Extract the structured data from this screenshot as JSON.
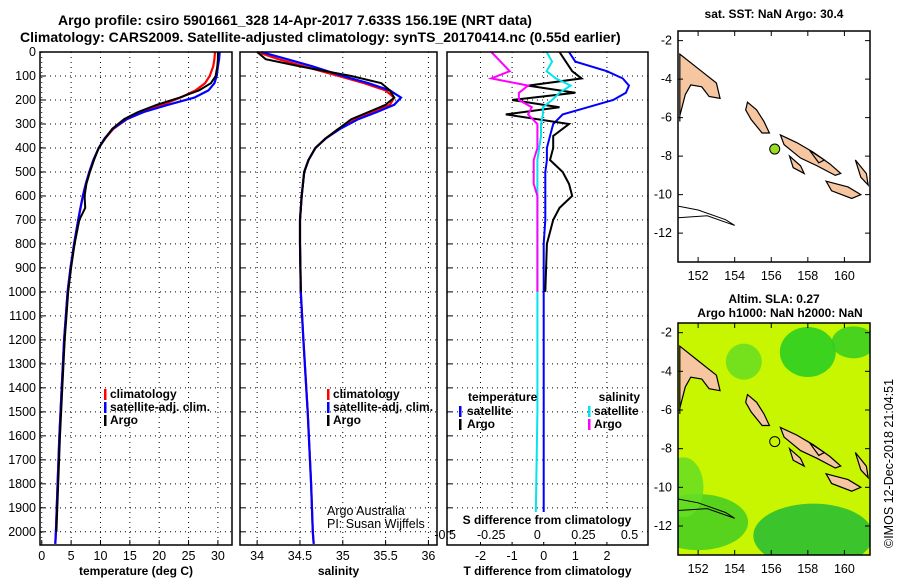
{
  "title": {
    "line1": "Argo profile: csiro 5901661_328 14-Apr-2017 7.633S 156.19E (NRT data)",
    "line2": "Climatology: CARS2009. Satellite-adjusted climatology: synTS_20170414.nc (0.55d earlier)"
  },
  "colors": {
    "climatology": "#ff0000",
    "satellite": "#0000ff",
    "argo": "#000000",
    "sal_satellite": "#00e5ee",
    "sal_argo": "#ff00ff",
    "land": "#f5c6a0"
  },
  "depth_ticks": [
    "0",
    "100",
    "200",
    "300",
    "400",
    "500",
    "600",
    "700",
    "800",
    "900",
    "1000",
    "1100",
    "1200",
    "1300",
    "1400",
    "1500",
    "1600",
    "1700",
    "1800",
    "1900",
    "2000"
  ],
  "chart_data": [
    {
      "type": "line",
      "name": "temperature",
      "xlabel": "temperature (deg C)",
      "ylabel": "depth",
      "xlim": [
        -0.3,
        32.4
      ],
      "ylim": [
        2055,
        0
      ],
      "xticks": [
        "0",
        "5",
        "10",
        "15",
        "20",
        "25",
        "30"
      ],
      "legend": {
        "placement": "lower-center",
        "entries": [
          "climatology",
          "satellite-adj. clim.",
          "Argo"
        ]
      },
      "depth": [
        0,
        30,
        60,
        100,
        130,
        160,
        190,
        220,
        250,
        280,
        320,
        360,
        400,
        450,
        500,
        550,
        600,
        650,
        700,
        800,
        900,
        1000,
        1200,
        1400,
        1600,
        1800,
        2000,
        2050
      ],
      "series": [
        {
          "name": "climatology",
          "values": [
            29.5,
            29.4,
            29.2,
            28.6,
            27.8,
            26.2,
            23.6,
            20.5,
            17.2,
            14.5,
            12.2,
            10.8,
            9.7,
            8.8,
            8.1,
            7.5,
            7.0,
            6.6,
            6.2,
            5.5,
            4.9,
            4.4,
            3.8,
            3.4,
            3.0,
            2.7,
            2.4,
            2.3
          ]
        },
        {
          "name": "satellite-adj. clim.",
          "values": [
            30.3,
            30.2,
            30.0,
            29.8,
            29.4,
            28.4,
            26.0,
            21.5,
            17.4,
            14.4,
            12.1,
            10.7,
            9.7,
            8.8,
            8.1,
            7.5,
            7.0,
            6.6,
            6.2,
            5.5,
            4.9,
            4.4,
            3.8,
            3.4,
            3.0,
            2.7,
            2.4,
            2.3
          ]
        },
        {
          "name": "Argo",
          "values": [
            30.0,
            30.0,
            29.9,
            29.6,
            28.8,
            26.8,
            23.5,
            19.6,
            16.4,
            14.0,
            12.0,
            10.8,
            9.7,
            8.9,
            8.2,
            7.6,
            7.3,
            7.4,
            6.4,
            5.6,
            5.0,
            4.5,
            3.9,
            3.5,
            3.1,
            2.8,
            2.5,
            null
          ]
        }
      ]
    },
    {
      "type": "line",
      "name": "salinity",
      "xlabel": "salinity",
      "ylabel": "depth",
      "xlim": [
        33.8,
        36.1
      ],
      "ylim": [
        2055,
        0
      ],
      "xticks": [
        "34",
        "34.5",
        "35",
        "35.5",
        "36"
      ],
      "legend": {
        "placement": "lower-center",
        "entries": [
          "climatology",
          "satellite-adj. clim.",
          "Argo"
        ]
      },
      "annotation": [
        "Argo Australia",
        "PI: Susan Wijffels"
      ],
      "depth": [
        0,
        30,
        60,
        100,
        130,
        160,
        190,
        220,
        250,
        280,
        320,
        360,
        400,
        450,
        500,
        600,
        700,
        800,
        1000,
        1200,
        1500,
        1800,
        2000,
        2050
      ],
      "series": [
        {
          "name": "climatology",
          "values": [
            34.0,
            34.25,
            34.55,
            34.95,
            35.25,
            35.5,
            35.6,
            35.55,
            35.35,
            35.15,
            34.95,
            34.8,
            34.68,
            34.6,
            34.55,
            34.52,
            34.5,
            34.5,
            34.51,
            34.54,
            34.59,
            34.63,
            34.65,
            34.66
          ]
        },
        {
          "name": "satellite-adj. clim.",
          "values": [
            34.05,
            34.35,
            34.65,
            35.0,
            35.3,
            35.55,
            35.68,
            35.6,
            35.4,
            35.18,
            34.97,
            34.8,
            34.68,
            34.6,
            34.55,
            34.52,
            34.5,
            34.5,
            34.51,
            34.54,
            34.59,
            34.63,
            34.65,
            34.66
          ]
        },
        {
          "name": "Argo",
          "values": [
            34.0,
            34.1,
            34.5,
            35.1,
            35.45,
            35.55,
            35.6,
            35.5,
            35.3,
            35.1,
            34.95,
            34.8,
            34.68,
            34.6,
            34.55,
            34.52,
            34.5,
            34.5,
            34.51,
            null,
            null,
            null,
            null,
            null
          ]
        }
      ]
    },
    {
      "type": "line",
      "name": "difference",
      "xlabel": "T difference from climatology",
      "x2label": "S difference from climatology",
      "xlim": [
        -3.06,
        3.3
      ],
      "x2lim": [
        -0.49,
        0.6
      ],
      "ylim": [
        2055,
        0
      ],
      "xticks": [
        "-2",
        "-1",
        "0",
        "1",
        "2"
      ],
      "x2ticks": [
        "-0.5",
        "-0.25",
        "0",
        "0.25",
        "0.5"
      ],
      "legend": {
        "placement": "lower-center",
        "temperature_title": "temperature",
        "salinity_title": "salinity",
        "entries": [
          "satellite",
          "Argo"
        ]
      },
      "depth": [
        0,
        40,
        80,
        110,
        140,
        170,
        200,
        230,
        260,
        300,
        350,
        400,
        450,
        500,
        550,
        600,
        650,
        700,
        800,
        1000,
        1500,
        2000
      ],
      "series": [
        {
          "name": "T satellite",
          "values": [
            0.8,
            1.0,
            2.0,
            2.5,
            2.7,
            2.6,
            2.2,
            1.4,
            0.6,
            0.3,
            0.2,
            0.1,
            0.1,
            0.05,
            0.05,
            0.05,
            0.05,
            0.05,
            0.0,
            0.0,
            0.0,
            0.0
          ]
        },
        {
          "name": "T Argo",
          "values": [
            0.5,
            0.7,
            0.9,
            1.2,
            -0.5,
            1.0,
            -1.0,
            0.5,
            -1.2,
            0.8,
            0.3,
            0.3,
            0.2,
            0.6,
            0.8,
            0.9,
            0.5,
            0.3,
            0.1,
            0.05,
            null,
            null
          ]
        },
        {
          "name": "S satellite",
          "values": [
            0.05,
            0.08,
            0.05,
            0.1,
            0.18,
            0.12,
            0.08,
            0.03,
            0.03,
            0.02,
            0.02,
            0.01,
            0.0,
            0.0,
            0.0,
            0.0,
            0.0,
            0.0,
            0.0,
            0.0,
            0.0,
            -0.01
          ]
        },
        {
          "name": "S Argo",
          "values": [
            -0.25,
            -0.2,
            -0.15,
            -0.25,
            -0.05,
            -0.1,
            -0.1,
            -0.03,
            -0.05,
            0.0,
            0.0,
            0.0,
            -0.02,
            -0.02,
            -0.02,
            0.0,
            0.0,
            0.0,
            0.0,
            0.0,
            null,
            null
          ]
        }
      ]
    },
    {
      "type": "heatmap",
      "name": "sst-map",
      "title": "sat. SST: NaN Argo: 30.4",
      "xlim": [
        150.9,
        161.4
      ],
      "ylim": [
        -13.5,
        -1.5
      ],
      "xticks": [
        "152",
        "154",
        "156",
        "158",
        "160"
      ],
      "yticks": [
        "-2",
        "-4",
        "-6",
        "-8",
        "-10",
        "-12"
      ],
      "float_position": {
        "lon": 156.19,
        "lat": -7.633
      }
    },
    {
      "type": "heatmap",
      "name": "sla-map",
      "title": "Altim. SLA: 0.27",
      "subtitle": "Argo h1000: NaN h2000: NaN",
      "xlim": [
        150.9,
        161.4
      ],
      "ylim": [
        -13.5,
        -1.5
      ],
      "xticks": [
        "152",
        "154",
        "156",
        "158",
        "160"
      ],
      "yticks": [
        "-2",
        "-4",
        "-6",
        "-8",
        "-10",
        "-12"
      ],
      "float_position": {
        "lon": 156.19,
        "lat": -7.633
      }
    }
  ],
  "footer": "©IMOS 12-Dec-2018 21:04:51"
}
